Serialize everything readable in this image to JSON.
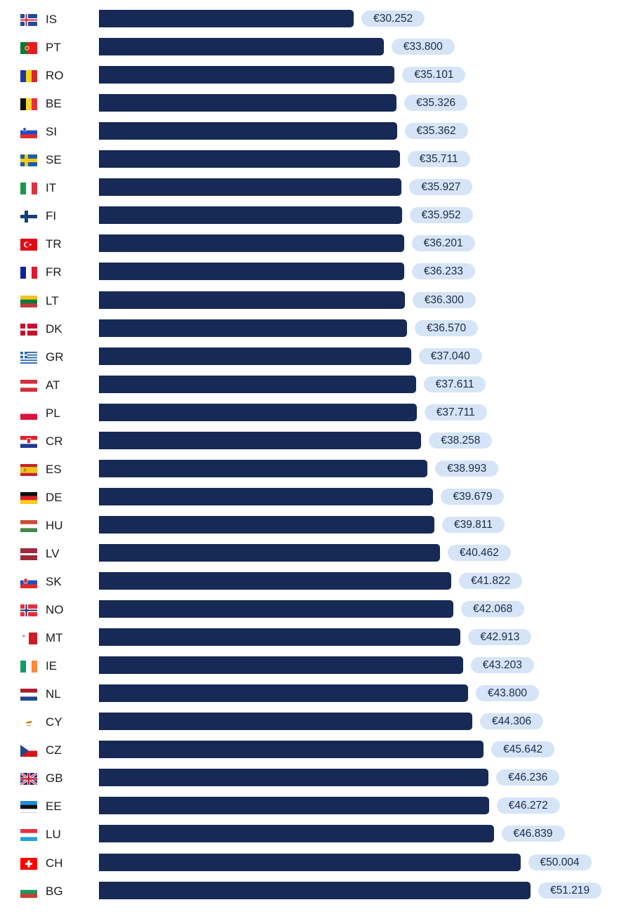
{
  "chart_data": {
    "type": "bar",
    "orientation": "horizontal",
    "title": "",
    "xlabel": "",
    "ylabel": "",
    "xlim": [
      0,
      51219
    ],
    "grid": false,
    "bar_color": "#172a55",
    "label_bg_color": "#d6e4f7",
    "categories": [
      "IS",
      "PT",
      "RO",
      "BE",
      "SI",
      "SE",
      "IT",
      "FI",
      "TR",
      "FR",
      "LT",
      "DK",
      "GR",
      "AT",
      "PL",
      "CR",
      "ES",
      "DE",
      "HU",
      "LV",
      "SK",
      "NO",
      "MT",
      "IE",
      "NL",
      "CY",
      "CZ",
      "GB",
      "EE",
      "LU",
      "CH",
      "BG"
    ],
    "values": [
      30252,
      33800,
      35101,
      35326,
      35362,
      35711,
      35927,
      35952,
      36201,
      36233,
      36300,
      36570,
      37040,
      37611,
      37711,
      38258,
      38993,
      39679,
      39811,
      40462,
      41822,
      42068,
      42913,
      43203,
      43800,
      44306,
      45642,
      46236,
      46272,
      46839,
      50004,
      51219
    ],
    "value_labels": [
      "€30.252",
      "€33.800",
      "€35.101",
      "€35.326",
      "€35.362",
      "€35.711",
      "€35.927",
      "€35.952",
      "€36.201",
      "€36.233",
      "€36.300",
      "€36.570",
      "€37.040",
      "€37.611",
      "€37.711",
      "€38.258",
      "€38.993",
      "€39.679",
      "€39.811",
      "€40.462",
      "€41.822",
      "€42.068",
      "€42.913",
      "€43.203",
      "€43.800",
      "€44.306",
      "€45.642",
      "€46.236",
      "€46.272",
      "€46.839",
      "€50.004",
      "€51.219"
    ],
    "flag_icons": [
      "flag-iceland-icon",
      "flag-portugal-icon",
      "flag-romania-icon",
      "flag-belgium-icon",
      "flag-slovenia-icon",
      "flag-sweden-icon",
      "flag-italy-icon",
      "flag-finland-icon",
      "flag-turkey-icon",
      "flag-france-icon",
      "flag-lithuania-icon",
      "flag-denmark-icon",
      "flag-greece-icon",
      "flag-austria-icon",
      "flag-poland-icon",
      "flag-croatia-icon",
      "flag-spain-icon",
      "flag-germany-icon",
      "flag-hungary-icon",
      "flag-latvia-icon",
      "flag-slovakia-icon",
      "flag-norway-icon",
      "flag-malta-icon",
      "flag-ireland-icon",
      "flag-netherlands-icon",
      "flag-cyprus-icon",
      "flag-czechia-icon",
      "flag-uk-icon",
      "flag-estonia-icon",
      "flag-luxembourg-icon",
      "flag-switzerland-icon",
      "flag-bulgaria-icon"
    ]
  }
}
